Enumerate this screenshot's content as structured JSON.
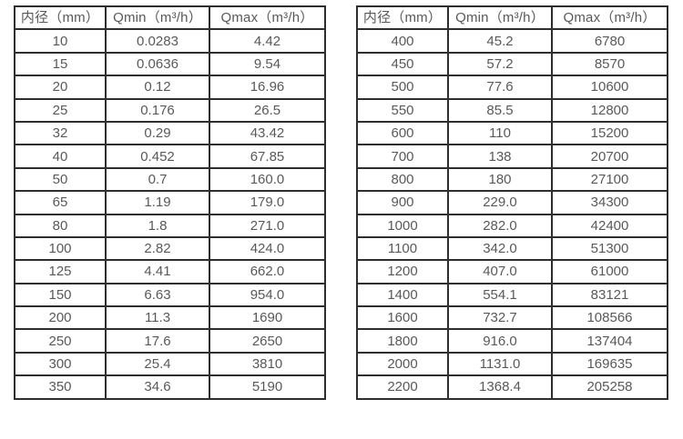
{
  "tables": [
    {
      "name": "small-diameters",
      "headers": [
        "内径（mm）",
        "Qmin（m³/h）",
        "Qmax（m³/h）"
      ],
      "rows": [
        [
          "10",
          "0.0283",
          "4.42"
        ],
        [
          "15",
          "0.0636",
          "9.54"
        ],
        [
          "20",
          "0.12",
          "16.96"
        ],
        [
          "25",
          "0.176",
          "26.5"
        ],
        [
          "32",
          "0.29",
          "43.42"
        ],
        [
          "40",
          "0.452",
          "67.85"
        ],
        [
          "50",
          "0.7",
          "160.0"
        ],
        [
          "65",
          "1.19",
          "179.0"
        ],
        [
          "80",
          "1.8",
          "271.0"
        ],
        [
          "100",
          "2.82",
          "424.0"
        ],
        [
          "125",
          "4.41",
          "662.0"
        ],
        [
          "150",
          "6.63",
          "954.0"
        ],
        [
          "200",
          "11.3",
          "1690"
        ],
        [
          "250",
          "17.6",
          "2650"
        ],
        [
          "300",
          "25.4",
          "3810"
        ],
        [
          "350",
          "34.6",
          "5190"
        ]
      ]
    },
    {
      "name": "large-diameters",
      "headers": [
        "内径（mm）",
        "Qmin（m³/h）",
        "Qmax（m³/h）"
      ],
      "rows": [
        [
          "400",
          "45.2",
          "6780"
        ],
        [
          "450",
          "57.2",
          "8570"
        ],
        [
          "500",
          "77.6",
          "10600"
        ],
        [
          "550",
          "85.5",
          "12800"
        ],
        [
          "600",
          "110",
          "15200"
        ],
        [
          "700",
          "138",
          "20700"
        ],
        [
          "800",
          "180",
          "27100"
        ],
        [
          "900",
          "229.0",
          "34300"
        ],
        [
          "1000",
          "282.0",
          "42400"
        ],
        [
          "1100",
          "342.0",
          "51300"
        ],
        [
          "1200",
          "407.0",
          "61000"
        ],
        [
          "1400",
          "554.1",
          "83121"
        ],
        [
          "1600",
          "732.7",
          "108566"
        ],
        [
          "1800",
          "916.0",
          "137404"
        ],
        [
          "2000",
          "1131.0",
          "169635"
        ],
        [
          "2200",
          "1368.4",
          "205258"
        ]
      ]
    }
  ],
  "colors": {
    "border": "#2e2e2e",
    "text": "#595959",
    "background": "#ffffff"
  }
}
